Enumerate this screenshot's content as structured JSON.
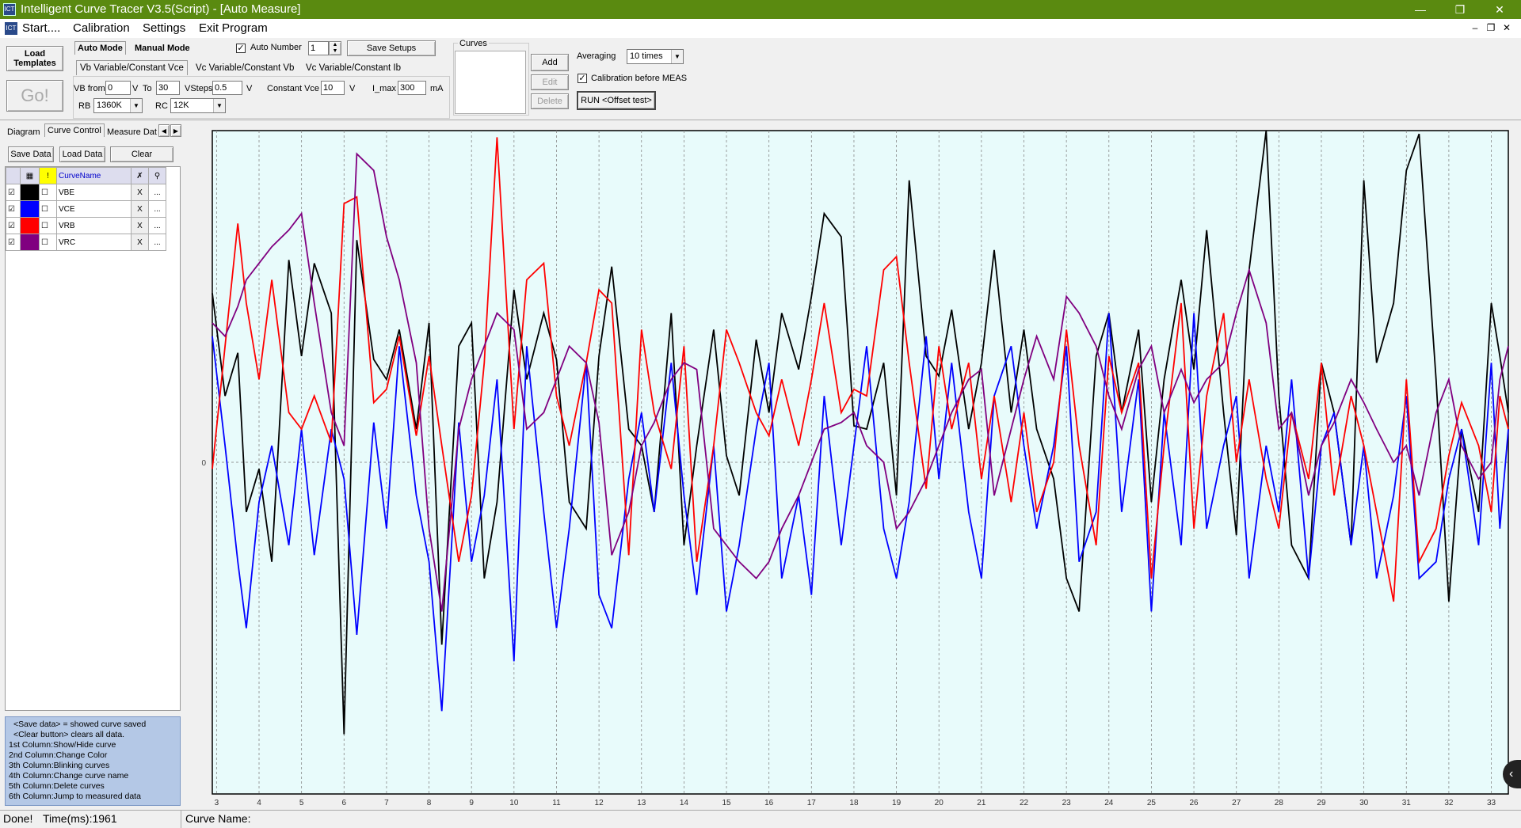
{
  "window": {
    "title": "Intelligent Curve Tracer V3.5(Script) - [Auto Measure]",
    "app_icon_text": "ICT",
    "minimize_icon": "minimize-icon",
    "maximize_icon": "restore-icon",
    "close_icon": "close-icon"
  },
  "menu": {
    "items": [
      "Start....",
      "Calibration",
      "Settings",
      "Exit Program"
    ]
  },
  "toolbar": {
    "load_templates": "Load Templates",
    "go": "Go!",
    "mode_tabs": [
      "Auto Mode",
      "Manual Mode"
    ],
    "auto_number_label": "Auto Number",
    "auto_number_checked": true,
    "auto_number_value": "1",
    "save_setups": "Save Setups",
    "variant_tabs": [
      "Vb Variable/Constant Vce",
      "Vc Variable/Constant Vb",
      "Vc Variable/Constant Ib"
    ],
    "vb_from_label": "VB from",
    "vb_from_value": "0",
    "v_unit": "V",
    "to_label": "To",
    "to_value": "30",
    "vsteps_label": "VSteps",
    "vsteps_value": "0.5",
    "constant_vce_label": "Constant Vce",
    "constant_vce_value": "10",
    "imax_label": "I_max",
    "imax_value": "300",
    "ma_unit": "mA",
    "rb_label": "RB",
    "rb_value": "1360K",
    "rc_label": "RC",
    "rc_value": "12K",
    "curves_label": "Curves",
    "add": "Add",
    "edit": "Edit",
    "delete": "Delete",
    "averaging_label": "Averaging",
    "averaging_value": "10 times",
    "calibration_label": "Calibration before MEAS",
    "calibration_checked": true,
    "run_button": "RUN <Offset test>"
  },
  "left_panel": {
    "tabs": [
      "Diagram",
      "Curve Control",
      "Measure Dat"
    ],
    "save_data": "Save Data",
    "load_data": "Load Data",
    "clear": "Clear",
    "column_header": "CurveName",
    "curves": [
      {
        "name": "VBE",
        "color": "#000000",
        "visible": true
      },
      {
        "name": "VCE",
        "color": "#0000ff",
        "visible": true
      },
      {
        "name": "VRB",
        "color": "#ff0000",
        "visible": true
      },
      {
        "name": "VRC",
        "color": "#800080",
        "visible": true
      }
    ],
    "delete_symbol": "X",
    "more_symbol": "...",
    "help_lines": [
      "<Save data> = showed curve saved",
      "<Clear button> clears all data.",
      "1st Column:Show/Hide curve",
      "2nd Column:Change Color",
      "3th Column:Blinking curves",
      "4th Column:Change curve name",
      "5th Column:Delete curves",
      "6th Column:Jump to measured data"
    ]
  },
  "chart_data": {
    "type": "line",
    "xlabel": "",
    "ylabel": "",
    "xlim": [
      2.9,
      33.4
    ],
    "ylim": [
      -1,
      1
    ],
    "zero_label": "0",
    "x_ticks": [
      3,
      4,
      5,
      6,
      7,
      8,
      9,
      10,
      11,
      12,
      13,
      14,
      15,
      16,
      17,
      18,
      19,
      20,
      21,
      22,
      23,
      24,
      25,
      26,
      27,
      28,
      29,
      30,
      31,
      32,
      33
    ],
    "grid": true,
    "background": "#e8fbfb",
    "series": [
      {
        "name": "VBE",
        "color": "#000000",
        "x": [
          2.9,
          3.2,
          3.5,
          3.7,
          4.0,
          4.3,
          4.7,
          5.0,
          5.3,
          5.7,
          6.0,
          6.3,
          6.7,
          7.0,
          7.3,
          7.7,
          8.0,
          8.3,
          8.7,
          9.0,
          9.3,
          9.6,
          10.0,
          10.3,
          10.7,
          11.0,
          11.3,
          11.7,
          12.0,
          12.3,
          12.7,
          13.0,
          13.3,
          13.7,
          14.0,
          14.3,
          14.7,
          15.0,
          15.3,
          15.7,
          16.0,
          16.3,
          16.7,
          17.0,
          17.3,
          17.7,
          18.0,
          18.3,
          18.7,
          19.0,
          19.3,
          19.7,
          20.0,
          20.3,
          20.7,
          21.0,
          21.3,
          21.7,
          22.0,
          22.3,
          22.7,
          23.0,
          23.3,
          23.7,
          24.0,
          24.3,
          24.7,
          25.0,
          25.3,
          25.7,
          26.0,
          26.3,
          26.7,
          27.0,
          27.3,
          27.7,
          28.0,
          28.3,
          28.7,
          29.0,
          29.3,
          29.7,
          30.0,
          30.3,
          30.7,
          31.0,
          31.3,
          31.7,
          32.0,
          32.3,
          32.7,
          33.0,
          33.2,
          33.4
        ],
        "y": [
          0.51,
          0.2,
          0.33,
          -0.15,
          -0.02,
          -0.3,
          0.61,
          0.32,
          0.6,
          0.45,
          -0.82,
          0.67,
          0.31,
          0.25,
          0.4,
          0.1,
          0.42,
          -0.55,
          0.35,
          0.42,
          -0.35,
          -0.12,
          0.52,
          0.25,
          0.45,
          0.31,
          -0.12,
          -0.2,
          0.32,
          0.59,
          0.1,
          0.05,
          -0.15,
          0.45,
          -0.25,
          0.05,
          0.4,
          0.02,
          -0.1,
          0.37,
          0.15,
          0.45,
          0.28,
          0.5,
          0.75,
          0.68,
          0.11,
          0.1,
          0.3,
          -0.1,
          0.85,
          0.32,
          0.26,
          0.46,
          0.1,
          0.3,
          0.64,
          0.15,
          0.4,
          0.1,
          -0.05,
          -0.35,
          -0.45,
          0.32,
          0.45,
          0.15,
          0.4,
          -0.12,
          0.25,
          0.55,
          0.28,
          0.7,
          0.15,
          -0.22,
          0.58,
          1.0,
          0.2,
          -0.25,
          -0.35,
          0.3,
          0.15,
          -0.25,
          0.85,
          0.3,
          0.48,
          0.88,
          0.99,
          0.25,
          -0.42,
          0.1,
          -0.15,
          0.48,
          0.32,
          0.15
        ]
      },
      {
        "name": "VCE",
        "color": "#0000ff",
        "x": [
          2.9,
          3.2,
          3.5,
          3.7,
          4.0,
          4.3,
          4.7,
          5.0,
          5.3,
          5.7,
          6.0,
          6.3,
          6.7,
          7.0,
          7.3,
          7.7,
          8.0,
          8.3,
          8.7,
          9.0,
          9.3,
          9.6,
          10.0,
          10.3,
          10.7,
          11.0,
          11.3,
          11.7,
          12.0,
          12.3,
          12.7,
          13.0,
          13.3,
          13.7,
          14.0,
          14.3,
          14.7,
          15.0,
          15.3,
          15.7,
          16.0,
          16.3,
          16.7,
          17.0,
          17.3,
          17.7,
          18.0,
          18.3,
          18.7,
          19.0,
          19.3,
          19.7,
          20.0,
          20.3,
          20.7,
          21.0,
          21.3,
          21.7,
          22.0,
          22.3,
          22.7,
          23.0,
          23.3,
          23.7,
          24.0,
          24.3,
          24.7,
          25.0,
          25.3,
          25.7,
          26.0,
          26.3,
          26.7,
          27.0,
          27.3,
          27.7,
          28.0,
          28.3,
          28.7,
          29.0,
          29.3,
          29.7,
          30.0,
          30.3,
          30.7,
          31.0,
          31.3,
          31.7,
          32.0,
          32.3,
          32.7,
          33.0,
          33.2,
          33.4
        ],
        "y": [
          0.38,
          0.05,
          -0.3,
          -0.5,
          -0.12,
          0.05,
          -0.25,
          0.1,
          -0.28,
          0.1,
          -0.05,
          -0.52,
          0.12,
          -0.2,
          0.35,
          -0.1,
          -0.3,
          -0.75,
          0.12,
          -0.3,
          -0.1,
          0.25,
          -0.6,
          0.35,
          -0.15,
          -0.5,
          -0.2,
          0.3,
          -0.4,
          -0.5,
          -0.05,
          0.15,
          -0.15,
          0.3,
          -0.1,
          -0.4,
          0.05,
          -0.45,
          -0.25,
          0.1,
          0.3,
          -0.35,
          -0.1,
          -0.4,
          0.2,
          -0.25,
          0.05,
          0.35,
          -0.2,
          -0.35,
          -0.12,
          0.38,
          -0.05,
          0.3,
          -0.15,
          -0.35,
          0.2,
          0.35,
          0.05,
          -0.2,
          0.05,
          0.35,
          -0.3,
          -0.15,
          0.45,
          -0.15,
          0.25,
          -0.45,
          0.15,
          -0.25,
          0.45,
          -0.2,
          0.05,
          0.2,
          -0.35,
          0.05,
          -0.15,
          0.25,
          -0.35,
          0.05,
          0.15,
          -0.25,
          0.05,
          -0.35,
          -0.1,
          0.2,
          -0.35,
          -0.3,
          -0.05,
          0.1,
          -0.25,
          0.3,
          -0.2,
          0.1
        ]
      },
      {
        "name": "VRB",
        "color": "#ff0000",
        "x": [
          2.9,
          3.2,
          3.5,
          3.7,
          4.0,
          4.3,
          4.7,
          5.0,
          5.3,
          5.7,
          6.0,
          6.3,
          6.7,
          7.0,
          7.3,
          7.7,
          8.0,
          8.3,
          8.7,
          9.0,
          9.3,
          9.6,
          10.0,
          10.3,
          10.7,
          11.0,
          11.3,
          11.7,
          12.0,
          12.3,
          12.7,
          13.0,
          13.3,
          13.7,
          14.0,
          14.3,
          14.7,
          15.0,
          15.3,
          15.7,
          16.0,
          16.3,
          16.7,
          17.0,
          17.3,
          17.7,
          18.0,
          18.3,
          18.7,
          19.0,
          19.3,
          19.7,
          20.0,
          20.3,
          20.7,
          21.0,
          21.3,
          21.7,
          22.0,
          22.3,
          22.7,
          23.0,
          23.3,
          23.7,
          24.0,
          24.3,
          24.7,
          25.0,
          25.3,
          25.7,
          26.0,
          26.3,
          26.7,
          27.0,
          27.3,
          27.7,
          28.0,
          28.3,
          28.7,
          29.0,
          29.3,
          29.7,
          30.0,
          30.3,
          30.7,
          31.0,
          31.3,
          31.7,
          32.0,
          32.3,
          32.7,
          33.0,
          33.2,
          33.4
        ],
        "y": [
          -0.02,
          0.35,
          0.72,
          0.48,
          0.25,
          0.55,
          0.15,
          0.1,
          0.2,
          0.06,
          0.78,
          0.8,
          0.18,
          0.22,
          0.38,
          0.08,
          0.32,
          0.05,
          -0.3,
          -0.1,
          0.3,
          0.98,
          0.1,
          0.55,
          0.6,
          0.2,
          0.05,
          0.3,
          0.52,
          0.48,
          -0.28,
          0.4,
          0.15,
          -0.02,
          0.35,
          -0.3,
          0.05,
          0.4,
          0.3,
          0.15,
          0.08,
          0.25,
          0.05,
          0.25,
          0.48,
          0.15,
          0.22,
          0.2,
          0.58,
          0.62,
          0.3,
          -0.08,
          0.35,
          0.1,
          0.3,
          -0.05,
          0.2,
          -0.12,
          0.15,
          -0.15,
          0.0,
          0.4,
          0.05,
          -0.25,
          0.32,
          0.15,
          0.3,
          -0.35,
          0.05,
          0.48,
          -0.2,
          0.2,
          0.45,
          0.0,
          0.25,
          -0.05,
          -0.2,
          0.15,
          -0.05,
          0.3,
          -0.1,
          0.2,
          0.05,
          -0.15,
          -0.42,
          0.25,
          -0.3,
          -0.2,
          0.02,
          0.18,
          0.05,
          -0.15,
          0.2,
          0.1
        ]
      },
      {
        "name": "VRC",
        "color": "#800080",
        "x": [
          2.9,
          3.2,
          3.5,
          3.7,
          4.0,
          4.3,
          4.7,
          5.0,
          5.3,
          5.7,
          6.0,
          6.3,
          6.7,
          7.0,
          7.3,
          7.7,
          8.0,
          8.3,
          8.7,
          9.0,
          9.3,
          9.6,
          10.0,
          10.3,
          10.7,
          11.0,
          11.3,
          11.7,
          12.0,
          12.3,
          12.7,
          13.0,
          13.3,
          13.7,
          14.0,
          14.3,
          14.7,
          15.0,
          15.3,
          15.7,
          16.0,
          16.3,
          16.7,
          17.0,
          17.3,
          17.7,
          18.0,
          18.3,
          18.7,
          19.0,
          19.3,
          19.7,
          20.0,
          20.3,
          20.7,
          21.0,
          21.3,
          21.7,
          22.0,
          22.3,
          22.7,
          23.0,
          23.3,
          23.7,
          24.0,
          24.3,
          24.7,
          25.0,
          25.3,
          25.7,
          26.0,
          26.3,
          26.7,
          27.0,
          27.3,
          27.7,
          28.0,
          28.3,
          28.7,
          29.0,
          29.3,
          29.7,
          30.0,
          30.3,
          30.7,
          31.0,
          31.3,
          31.7,
          32.0,
          32.3,
          32.7,
          33.0,
          33.2,
          33.4
        ],
        "y": [
          0.42,
          0.38,
          0.47,
          0.55,
          0.6,
          0.65,
          0.7,
          0.75,
          0.48,
          0.15,
          0.05,
          0.93,
          0.88,
          0.68,
          0.55,
          0.3,
          -0.2,
          -0.45,
          0.1,
          0.25,
          0.35,
          0.45,
          0.4,
          0.1,
          0.15,
          0.25,
          0.35,
          0.3,
          0.12,
          -0.28,
          -0.15,
          0.05,
          0.12,
          0.25,
          0.3,
          0.28,
          -0.2,
          -0.25,
          -0.3,
          -0.35,
          -0.3,
          -0.2,
          -0.1,
          0.0,
          0.1,
          0.12,
          0.15,
          0.05,
          0.0,
          -0.2,
          -0.15,
          -0.05,
          0.05,
          0.15,
          0.25,
          0.28,
          -0.1,
          0.1,
          0.25,
          0.38,
          0.25,
          0.5,
          0.45,
          0.35,
          0.2,
          0.1,
          0.28,
          0.35,
          0.15,
          0.28,
          0.18,
          0.25,
          0.3,
          0.45,
          0.58,
          0.42,
          0.1,
          0.15,
          -0.1,
          0.05,
          0.12,
          0.25,
          0.18,
          0.1,
          0.0,
          0.05,
          -0.1,
          0.15,
          0.25,
          0.05,
          -0.05,
          0.0,
          0.25,
          0.35
        ]
      }
    ]
  },
  "status": {
    "state": "Done!",
    "time": "Time(ms):1961",
    "curve_name_label": "Curve Name:"
  }
}
